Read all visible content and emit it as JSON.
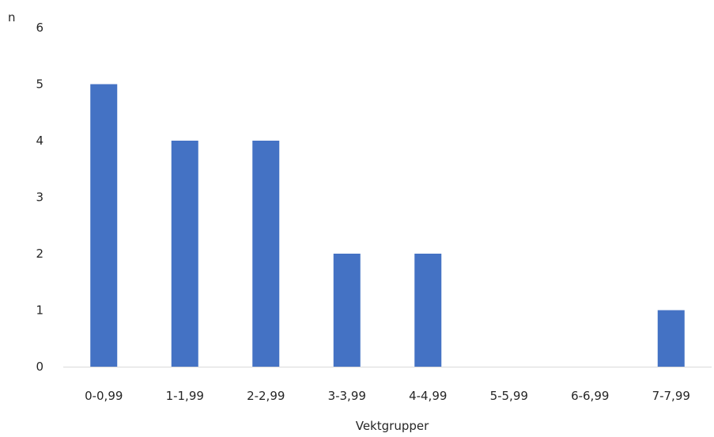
{
  "chart_data": {
    "type": "bar",
    "categories": [
      "0-0,99",
      "1-1,99",
      "2-2,99",
      "3-3,99",
      "4-4,99",
      "5-5,99",
      "6-6,99",
      "7-7,99"
    ],
    "values": [
      5,
      4,
      4,
      2,
      2,
      0,
      0,
      1
    ],
    "xlabel": "Vektgrupper",
    "ylabel": "n",
    "ylim": [
      0,
      6
    ],
    "yticks": [
      "0",
      "1",
      "2",
      "3",
      "4",
      "5",
      "6"
    ],
    "grid": false,
    "legend": "none",
    "bar_color": "#4472c4"
  }
}
